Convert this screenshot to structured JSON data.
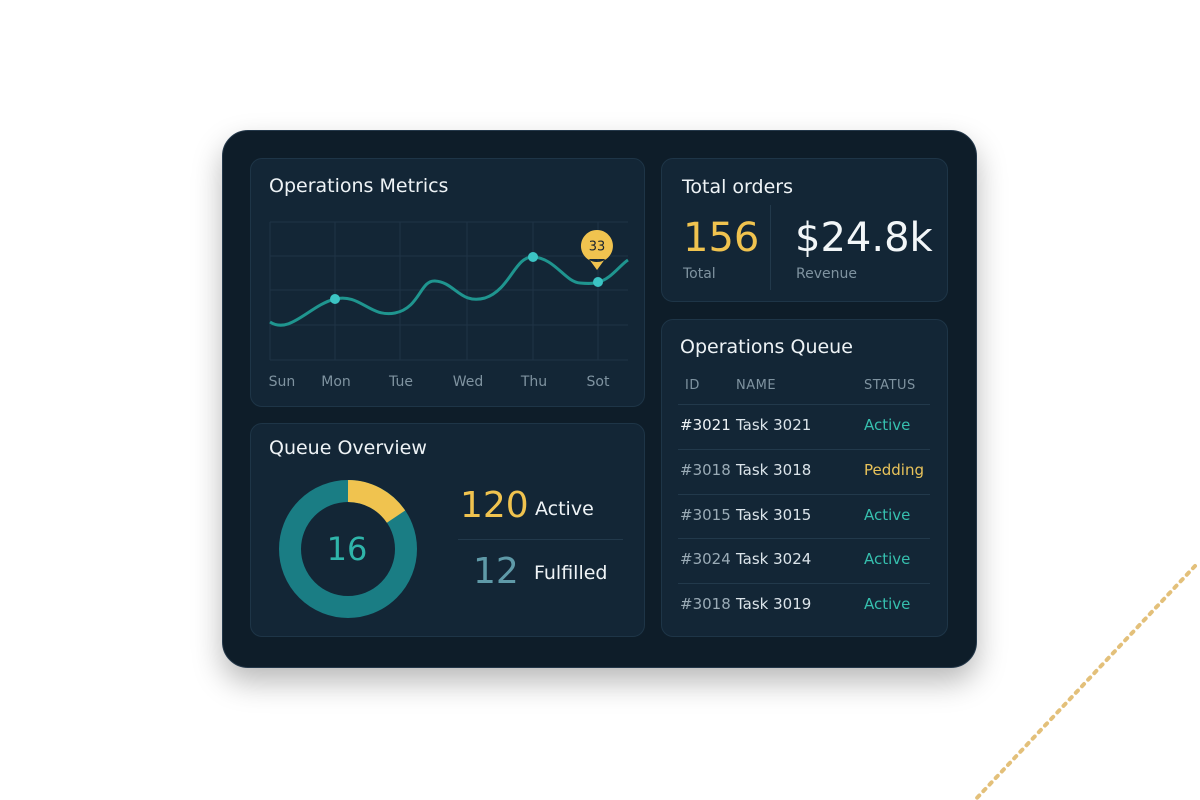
{
  "metrics": {
    "title": "Operations Metrics",
    "callout": 33,
    "days": [
      "Sun",
      "Mon",
      "Tue",
      "Wed",
      "Thu",
      "Sot"
    ]
  },
  "orders": {
    "title": "Total orders",
    "total": {
      "value": 156,
      "label": "Total"
    },
    "revenue": {
      "value": "$24.8k",
      "label": "Revenue"
    }
  },
  "overview": {
    "title": "Queue Overview",
    "center": 16,
    "stats": [
      {
        "value": 120,
        "label": "Active"
      },
      {
        "value": 12,
        "label": "Fulfilled"
      }
    ]
  },
  "queue": {
    "title": "Operations Queue",
    "columns": [
      "ID",
      "NAME",
      "STATUS"
    ],
    "rows": [
      [
        "#3021",
        "Task 3021",
        "Active"
      ],
      [
        "#3018",
        "Task 3018",
        "Pedding"
      ],
      [
        "#3015",
        "Task 3015",
        "Active"
      ],
      [
        "#3024",
        "Task 3024",
        "Active"
      ],
      [
        "#3018",
        "Task 3019",
        "Active"
      ]
    ]
  }
}
